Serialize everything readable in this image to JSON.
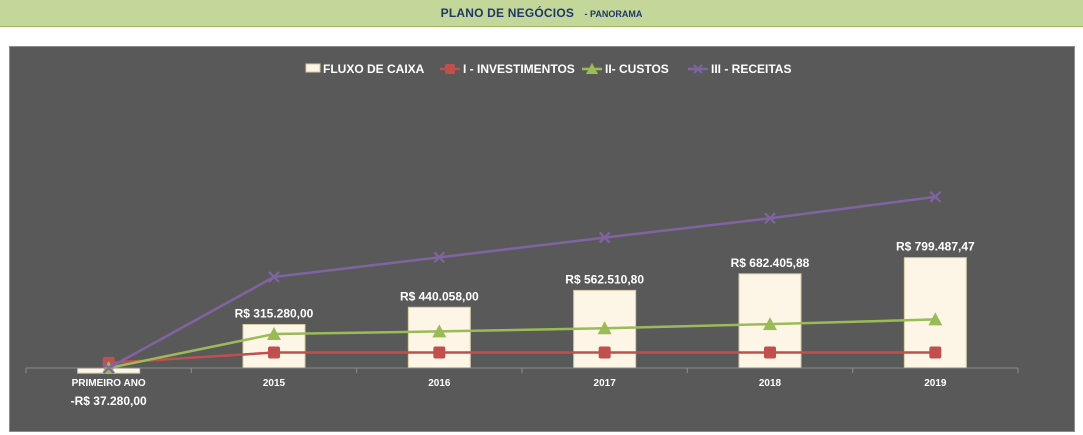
{
  "header": {
    "title": "PLANO  DE NEGÓCIOS",
    "subtitle": "- PANORAMA"
  },
  "chart_data": {
    "type": "bar",
    "categories": [
      "PRIMEIRO ANO",
      "2015",
      "2016",
      "2017",
      "2018",
      "2019"
    ],
    "ylim": [
      -40000,
      1000000
    ],
    "grid": false,
    "legend_position": "top",
    "bar_series": {
      "name": "FLUXO DE CAIXA",
      "color": "#fdf5e6",
      "values": [
        -37280,
        315280,
        440058,
        562510.8,
        682405.88,
        799487.47
      ],
      "data_labels": [
        "-R$ 37.280,00",
        "R$ 315.280,00",
        "R$ 440.058,00",
        "R$ 562.510,80",
        "R$ 682.405,88",
        "R$ 799.487,47"
      ]
    },
    "line_series": [
      {
        "name": "I - INVESTIMENTOS",
        "color": "#c0504d",
        "marker": "square",
        "values": [
          37280,
          112000,
          112000,
          112000,
          112000,
          112000
        ]
      },
      {
        "name": "II- CUSTOS",
        "color": "#9bbb59",
        "marker": "triangle",
        "values": [
          0,
          246000,
          265000,
          288000,
          318000,
          352000
        ]
      },
      {
        "name": "III - RECEITAS",
        "color": "#8064a2",
        "marker": "x",
        "values": [
          0,
          660000,
          802000,
          945000,
          1085000,
          1240000
        ]
      }
    ]
  }
}
